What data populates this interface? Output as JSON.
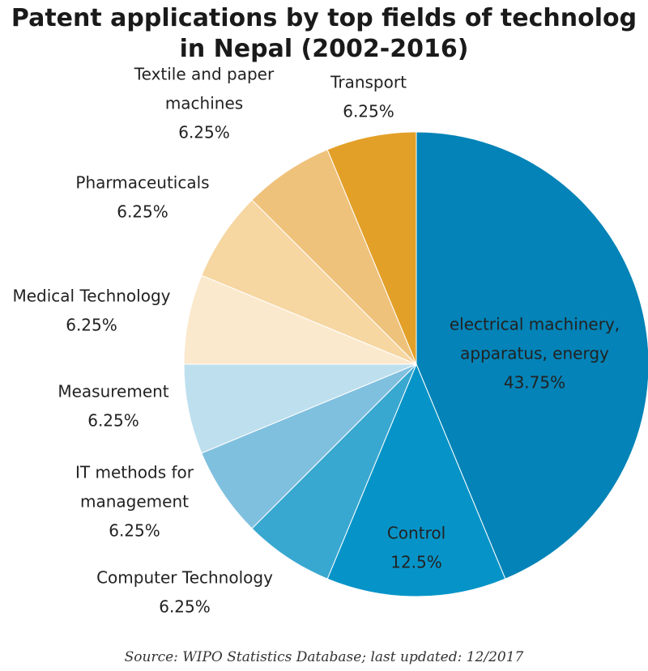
{
  "chart_data": {
    "type": "pie",
    "title_lines": [
      "Patent applications by top fields of technolog",
      "in Nepal (2002-2016)"
    ],
    "start": "top",
    "direction": "clockwise",
    "slices": [
      {
        "label_lines": [
          "electrical machinery,",
          "apparatus, energy"
        ],
        "value_label": "43.75%",
        "value": 43.75,
        "color": "#0383b7"
      },
      {
        "label_lines": [
          "Control"
        ],
        "value_label": "12.5%",
        "value": 12.5,
        "color": "#0694c8"
      },
      {
        "label_lines": [
          "Computer Technology"
        ],
        "value_label": "6.25%",
        "value": 6.25,
        "color": "#39a8d1"
      },
      {
        "label_lines": [
          "IT methods for",
          "management"
        ],
        "value_label": "6.25%",
        "value": 6.25,
        "color": "#80c0df"
      },
      {
        "label_lines": [
          "Measurement"
        ],
        "value_label": "6.25%",
        "value": 6.25,
        "color": "#bedfee"
      },
      {
        "label_lines": [
          "Medical Technology"
        ],
        "value_label": "6.25%",
        "value": 6.25,
        "color": "#fbe9cd"
      },
      {
        "label_lines": [
          "Pharmaceuticals"
        ],
        "value_label": "6.25%",
        "value": 6.25,
        "color": "#f6d6a1"
      },
      {
        "label_lines": [
          "Textile and paper",
          "machines"
        ],
        "value_label": "6.25%",
        "value": 6.25,
        "color": "#efc27c"
      },
      {
        "label_lines": [
          "Transport"
        ],
        "value_label": "6.25%",
        "value": 6.25,
        "color": "#e3a028"
      }
    ]
  },
  "source": "Source: WIPO Statistics Database; last updated: 12/2017"
}
